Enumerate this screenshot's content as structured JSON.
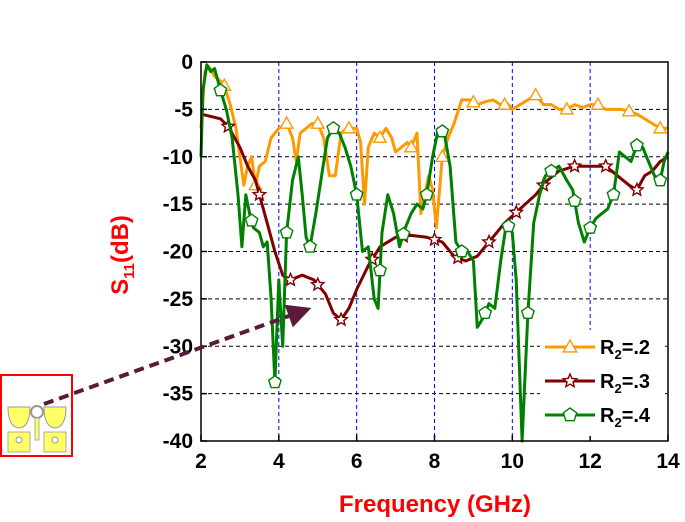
{
  "chart_data": {
    "type": "line",
    "title": "",
    "xlabel": "Frequency (GHz)",
    "ylabel_main": "S",
    "ylabel_sub": "11",
    "ylabel_tail": "(dB)",
    "xlim": [
      2,
      14
    ],
    "ylim": [
      -40,
      0
    ],
    "x_ticks": [
      2,
      4,
      6,
      8,
      10,
      12,
      14
    ],
    "y_ticks": [
      0,
      -5,
      -10,
      -15,
      -20,
      -25,
      -30,
      -35,
      -40
    ],
    "grid": {
      "x_dashed_color": "#0000ff",
      "y_dashed_color": "#000000"
    },
    "legend_position": "bottom-right",
    "series": [
      {
        "name_main": "R",
        "name_sub": "2",
        "name_tail": "=.2",
        "color": "#ff9900",
        "marker": "triangle",
        "points": [
          [
            2,
            -7
          ],
          [
            2.1,
            -1
          ],
          [
            2.2,
            -0.5
          ],
          [
            2.35,
            -1.5
          ],
          [
            2.5,
            -2
          ],
          [
            2.6,
            -2.5
          ],
          [
            2.75,
            -4.5
          ],
          [
            2.9,
            -7
          ],
          [
            3.0,
            -10
          ],
          [
            3.1,
            -13
          ],
          [
            3.2,
            -11
          ],
          [
            3.3,
            -10
          ],
          [
            3.4,
            -13
          ],
          [
            3.5,
            -11
          ],
          [
            3.65,
            -10.5
          ],
          [
            3.8,
            -8
          ],
          [
            4.0,
            -7
          ],
          [
            4.2,
            -6.5
          ],
          [
            4.35,
            -8
          ],
          [
            4.45,
            -10.5
          ],
          [
            4.55,
            -7.5
          ],
          [
            4.7,
            -7
          ],
          [
            4.85,
            -6.5
          ],
          [
            5.0,
            -6.5
          ],
          [
            5.15,
            -8
          ],
          [
            5.3,
            -12
          ],
          [
            5.45,
            -12
          ],
          [
            5.6,
            -7.5
          ],
          [
            5.75,
            -7
          ],
          [
            5.9,
            -7
          ],
          [
            6.0,
            -7
          ],
          [
            6.1,
            -8.5
          ],
          [
            6.2,
            -15
          ],
          [
            6.3,
            -9
          ],
          [
            6.45,
            -7.5
          ],
          [
            6.6,
            -8
          ],
          [
            6.75,
            -7
          ],
          [
            6.9,
            -8
          ],
          [
            7.0,
            -9.5
          ],
          [
            7.15,
            -9
          ],
          [
            7.3,
            -8.5
          ],
          [
            7.4,
            -9
          ],
          [
            7.55,
            -7.5
          ],
          [
            7.65,
            -16
          ],
          [
            7.75,
            -14
          ],
          [
            7.85,
            -12
          ],
          [
            7.95,
            -13.5
          ],
          [
            8.05,
            -17.5
          ],
          [
            8.2,
            -10
          ],
          [
            8.35,
            -8
          ],
          [
            8.5,
            -6.5
          ],
          [
            8.7,
            -4
          ],
          [
            8.9,
            -4
          ],
          [
            9.1,
            -4.5
          ],
          [
            9.3,
            -4.2
          ],
          [
            9.5,
            -4
          ],
          [
            9.7,
            -4.5
          ],
          [
            9.9,
            -4.5
          ],
          [
            10.0,
            -5
          ],
          [
            10.2,
            -4.5
          ],
          [
            10.4,
            -4
          ],
          [
            10.6,
            -3.5
          ],
          [
            10.8,
            -4.5
          ],
          [
            11.0,
            -4.5
          ],
          [
            11.2,
            -5
          ],
          [
            11.4,
            -5
          ],
          [
            11.6,
            -4.5
          ],
          [
            11.8,
            -4.8
          ],
          [
            12.0,
            -4.5
          ],
          [
            12.2,
            -4.5
          ],
          [
            12.4,
            -5
          ],
          [
            12.6,
            -5
          ],
          [
            12.8,
            -5
          ],
          [
            13.0,
            -5.2
          ],
          [
            13.2,
            -5.5
          ],
          [
            13.4,
            -6
          ],
          [
            13.6,
            -6.5
          ],
          [
            13.8,
            -7
          ],
          [
            14.0,
            -7
          ]
        ],
        "marker_x": [
          2.6,
          3.4,
          4.2,
          5.0,
          5.8,
          6.6,
          7.4,
          8.2,
          9.0,
          9.8,
          10.6,
          11.4,
          12.2,
          13.0,
          13.8
        ]
      },
      {
        "name_main": "R",
        "name_sub": "2",
        "name_tail": "=.3",
        "color": "#800000",
        "marker": "star",
        "points": [
          [
            2,
            -5.5
          ],
          [
            2.5,
            -6
          ],
          [
            2.7,
            -6.8
          ],
          [
            3.0,
            -9
          ],
          [
            3.2,
            -11
          ],
          [
            3.4,
            -12.5
          ],
          [
            3.7,
            -17
          ],
          [
            3.9,
            -20
          ],
          [
            4.1,
            -22.5
          ],
          [
            4.3,
            -23
          ],
          [
            4.6,
            -22.5
          ],
          [
            4.9,
            -23
          ],
          [
            5.2,
            -24.5
          ],
          [
            5.4,
            -26.5
          ],
          [
            5.6,
            -27.2
          ],
          [
            5.8,
            -26
          ],
          [
            6.0,
            -24
          ],
          [
            6.3,
            -21.5
          ],
          [
            6.6,
            -19.5
          ],
          [
            7.0,
            -18.5
          ],
          [
            7.4,
            -18.3
          ],
          [
            7.8,
            -18.5
          ],
          [
            8.2,
            -19
          ],
          [
            8.5,
            -20.5
          ],
          [
            8.8,
            -21
          ],
          [
            9.1,
            -20.5
          ],
          [
            9.4,
            -19
          ],
          [
            9.8,
            -17
          ],
          [
            10.2,
            -15.5
          ],
          [
            10.6,
            -14
          ],
          [
            10.9,
            -12.5
          ],
          [
            11.2,
            -11.5
          ],
          [
            11.6,
            -11
          ],
          [
            12.0,
            -11
          ],
          [
            12.4,
            -11
          ],
          [
            12.7,
            -12
          ],
          [
            13.0,
            -13
          ],
          [
            13.2,
            -13.5
          ],
          [
            13.4,
            -12
          ],
          [
            13.6,
            -11.5
          ],
          [
            13.8,
            -10.5
          ],
          [
            14.0,
            -10
          ]
        ],
        "marker_x": [
          2.7,
          3.5,
          4.3,
          5.0,
          5.6,
          6.4,
          7.2,
          8.0,
          8.6,
          9.4,
          10.1,
          10.8,
          11.6,
          12.4,
          13.2
        ]
      },
      {
        "name_main": "R",
        "name_sub": "2",
        "name_tail": "=.4",
        "color": "#008000",
        "marker": "pentagon",
        "points": [
          [
            2,
            -10
          ],
          [
            2.05,
            -3
          ],
          [
            2.15,
            -0.3
          ],
          [
            2.25,
            -1
          ],
          [
            2.35,
            -0.7
          ],
          [
            2.5,
            -3
          ],
          [
            2.65,
            -5
          ],
          [
            2.8,
            -8
          ],
          [
            2.95,
            -14
          ],
          [
            3.05,
            -19.5
          ],
          [
            3.15,
            -14
          ],
          [
            3.25,
            -16
          ],
          [
            3.35,
            -17.5
          ],
          [
            3.5,
            -18
          ],
          [
            3.6,
            -19.5
          ],
          [
            3.7,
            -19
          ],
          [
            3.8,
            -25
          ],
          [
            3.9,
            -33.8
          ],
          [
            4.0,
            -23
          ],
          [
            4.1,
            -30
          ],
          [
            4.2,
            -18
          ],
          [
            4.35,
            -12.5
          ],
          [
            4.5,
            -10
          ],
          [
            4.6,
            -14
          ],
          [
            4.7,
            -18.5
          ],
          [
            4.8,
            -19.5
          ],
          [
            4.95,
            -16
          ],
          [
            5.1,
            -12
          ],
          [
            5.25,
            -8
          ],
          [
            5.4,
            -7
          ],
          [
            5.55,
            -7.5
          ],
          [
            5.7,
            -9
          ],
          [
            5.85,
            -11
          ],
          [
            6.0,
            -14
          ],
          [
            6.15,
            -20
          ],
          [
            6.3,
            -19.5
          ],
          [
            6.45,
            -25
          ],
          [
            6.55,
            -26
          ],
          [
            6.65,
            -18
          ],
          [
            6.8,
            -14
          ],
          [
            6.95,
            -16
          ],
          [
            7.1,
            -19.5
          ],
          [
            7.25,
            -17.5
          ],
          [
            7.4,
            -16
          ],
          [
            7.55,
            -15
          ],
          [
            7.7,
            -15.5
          ],
          [
            7.8,
            -14
          ],
          [
            7.95,
            -10
          ],
          [
            8.1,
            -7
          ],
          [
            8.25,
            -7.5
          ],
          [
            8.4,
            -11
          ],
          [
            8.55,
            -19
          ],
          [
            8.7,
            -20
          ],
          [
            8.85,
            -20
          ],
          [
            9.0,
            -21
          ],
          [
            9.1,
            -28
          ],
          [
            9.25,
            -27
          ],
          [
            9.4,
            -25.5
          ],
          [
            9.55,
            -26
          ],
          [
            9.7,
            -21
          ],
          [
            9.85,
            -17
          ],
          [
            10.0,
            -18
          ],
          [
            10.1,
            -23
          ],
          [
            10.25,
            -40
          ],
          [
            10.4,
            -26.5
          ],
          [
            10.55,
            -17
          ],
          [
            10.7,
            -14
          ],
          [
            10.85,
            -12
          ],
          [
            11.0,
            -11.5
          ],
          [
            11.2,
            -11
          ],
          [
            11.4,
            -12.5
          ],
          [
            11.55,
            -13.5
          ],
          [
            11.7,
            -17
          ],
          [
            11.85,
            -19
          ],
          [
            12.0,
            -17.5
          ],
          [
            12.15,
            -16.5
          ],
          [
            12.3,
            -16
          ],
          [
            12.45,
            -15.5
          ],
          [
            12.6,
            -14
          ],
          [
            12.75,
            -9.5
          ],
          [
            12.9,
            -10
          ],
          [
            13.05,
            -10.5
          ],
          [
            13.2,
            -8.8
          ],
          [
            13.35,
            -9
          ],
          [
            13.5,
            -10.5
          ],
          [
            13.65,
            -12
          ],
          [
            13.8,
            -12.5
          ],
          [
            13.9,
            -10.5
          ],
          [
            14.0,
            -9.5
          ]
        ],
        "marker_x": [
          2.5,
          3.3,
          3.9,
          4.2,
          4.8,
          5.4,
          6.0,
          6.6,
          7.2,
          7.8,
          8.2,
          8.7,
          9.3,
          9.9,
          10.4,
          11.0,
          11.6,
          12.0,
          12.6,
          13.2,
          13.8
        ]
      }
    ],
    "arrow_color": "#5a1a3a"
  },
  "inset": {
    "border_color": "#ff0000",
    "fill_color": "#ffff66"
  }
}
